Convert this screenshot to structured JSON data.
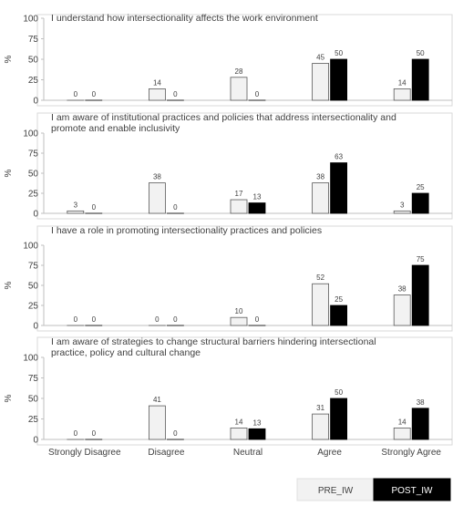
{
  "chart_data": {
    "type": "bar",
    "categories": [
      "Strongly Disagree",
      "Disagree",
      "Neutral",
      "Agree",
      "Strongly Agree"
    ],
    "ylabel": "%",
    "ylim": [
      0,
      100
    ],
    "yticks": [
      "0",
      "25",
      "50",
      "75",
      "100"
    ],
    "grid": false,
    "legend_position": "bottom-right",
    "series_colors": {
      "PRE_IW": "#f2f2f2",
      "POST_IW": "#000000"
    },
    "legend": [
      {
        "name": "PRE_IW",
        "color": "#f2f2f2"
      },
      {
        "name": "POST_IW",
        "color": "#000000"
      }
    ],
    "panels": [
      {
        "title_lines": [
          "I understand how intersectionality affects the work environment"
        ],
        "series": [
          {
            "name": "PRE_IW",
            "values": [
              0,
              14,
              28,
              45,
              14
            ]
          },
          {
            "name": "POST_IW",
            "values": [
              0,
              0,
              0,
              50,
              50
            ]
          }
        ]
      },
      {
        "title_lines": [
          "I am aware of institutional practices and policies that address intersectionality and",
          "promote and enable inclusivity"
        ],
        "series": [
          {
            "name": "PRE_IW",
            "values": [
              3,
              38,
              17,
              38,
              3
            ]
          },
          {
            "name": "POST_IW",
            "values": [
              0,
              0,
              13,
              63,
              25
            ]
          }
        ]
      },
      {
        "title_lines": [
          "I have a role in promoting intersectionality practices and policies"
        ],
        "series": [
          {
            "name": "PRE_IW",
            "values": [
              0,
              0,
              10,
              52,
              38
            ]
          },
          {
            "name": "POST_IW",
            "values": [
              0,
              0,
              0,
              25,
              75
            ]
          }
        ]
      },
      {
        "title_lines": [
          "I am aware of strategies to change structural barriers hindering intersectional",
          "practice, policy and cultural change"
        ],
        "series": [
          {
            "name": "PRE_IW",
            "values": [
              0,
              41,
              14,
              31,
              14
            ]
          },
          {
            "name": "POST_IW",
            "values": [
              0,
              0,
              13,
              50,
              38
            ]
          }
        ]
      }
    ]
  }
}
